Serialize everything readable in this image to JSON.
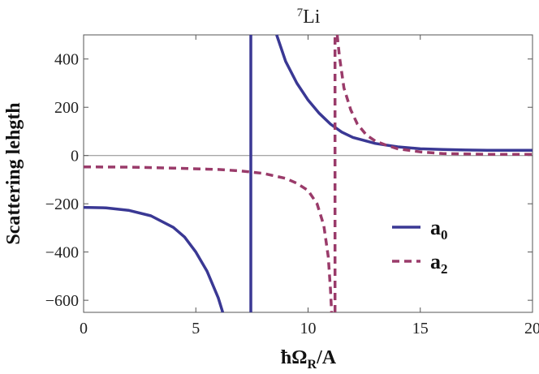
{
  "chart_data": {
    "type": "line",
    "title": "Li",
    "title_superscript": "7",
    "xlabel": "ħΩ",
    "xlabel_subscript": "R",
    "xlabel_suffix": "/A",
    "ylabel": "Scattering lehgth",
    "xlim": [
      0,
      20
    ],
    "ylim": [
      -650,
      500
    ],
    "xticks": [
      0,
      5,
      10,
      15,
      20
    ],
    "yticks": [
      -600,
      -400,
      -200,
      0,
      200,
      400
    ],
    "xtick_labels": [
      "0",
      "5",
      "10",
      "15",
      "20"
    ],
    "ytick_labels": [
      "−600",
      "−400",
      "−200",
      "0",
      "200",
      "400"
    ],
    "grid": false,
    "zero_line": true,
    "legend_position": "bottom-right",
    "series": [
      {
        "name": "a",
        "name_subscript": "0",
        "color": "#3a3894",
        "style": "solid",
        "segments": [
          [
            [
              0,
              -215
            ],
            [
              1,
              -217
            ],
            [
              2,
              -227
            ],
            [
              3,
              -250
            ],
            [
              4,
              -298
            ],
            [
              4.5,
              -338
            ],
            [
              5,
              -400
            ],
            [
              5.5,
              -480
            ],
            [
              6,
              -590
            ],
            [
              6.2,
              -650
            ]
          ],
          [
            [
              7.45,
              -650
            ],
            [
              7.45,
              500
            ]
          ],
          [
            [
              8.6,
              500
            ],
            [
              9,
              390
            ],
            [
              9.5,
              300
            ],
            [
              10,
              230
            ],
            [
              10.5,
              175
            ],
            [
              11,
              130
            ],
            [
              11.5,
              97
            ],
            [
              12,
              75
            ],
            [
              13,
              50
            ],
            [
              14,
              36
            ],
            [
              15,
              28
            ],
            [
              16,
              25
            ],
            [
              17,
              23
            ],
            [
              18,
              22
            ],
            [
              19,
              22
            ],
            [
              20,
              22
            ]
          ]
        ]
      },
      {
        "name": "a",
        "name_subscript": "2",
        "color": "#9a3b6a",
        "style": "dashed",
        "segments": [
          [
            [
              0,
              -47
            ],
            [
              2,
              -48
            ],
            [
              4,
              -52
            ],
            [
              6,
              -58
            ],
            [
              7,
              -64
            ],
            [
              8,
              -74
            ],
            [
              9,
              -95
            ],
            [
              9.5,
              -115
            ],
            [
              10,
              -145
            ],
            [
              10.4,
              -200
            ],
            [
              10.7,
              -290
            ],
            [
              10.9,
              -420
            ],
            [
              11.0,
              -560
            ],
            [
              11.05,
              -650
            ]
          ],
          [
            [
              11.2,
              -650
            ],
            [
              11.2,
              500
            ]
          ],
          [
            [
              11.3,
              500
            ],
            [
              11.4,
              410
            ],
            [
              11.6,
              280
            ],
            [
              11.9,
              190
            ],
            [
              12.2,
              130
            ],
            [
              12.6,
              85
            ],
            [
              13,
              60
            ],
            [
              13.5,
              42
            ],
            [
              14,
              28
            ],
            [
              15,
              15
            ],
            [
              16,
              8
            ],
            [
              18,
              5
            ],
            [
              20,
              5
            ]
          ]
        ]
      }
    ]
  }
}
